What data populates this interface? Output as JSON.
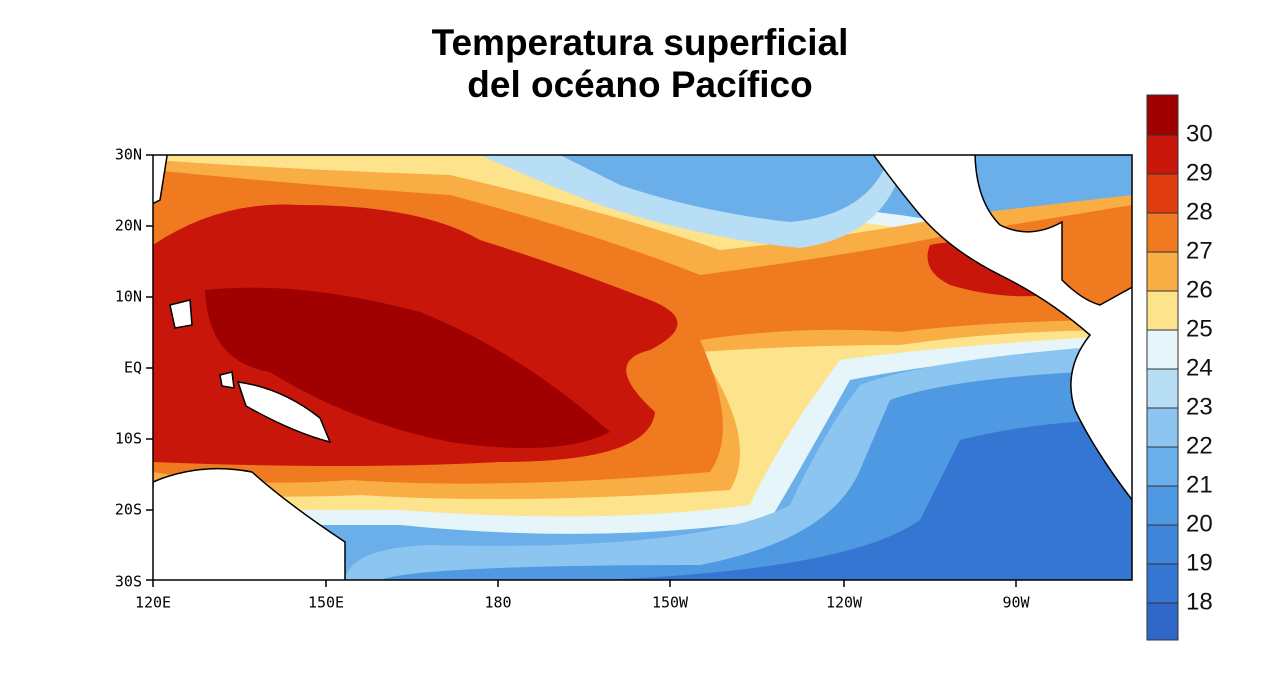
{
  "title": [
    "Temperatura superficial",
    "del océano Pacífico"
  ],
  "lat_labels": [
    "30N",
    "20N",
    "10N",
    "EQ",
    "10S",
    "20S",
    "30S"
  ],
  "lon_labels": [
    "120E",
    "150E",
    "180",
    "150W",
    "120W",
    "90W"
  ],
  "colorbar": {
    "labels": [
      30,
      29,
      28,
      27,
      26,
      25,
      24,
      23,
      22,
      21,
      20,
      19,
      18
    ],
    "colors": [
      "#a00000",
      "#c8160a",
      "#e03c12",
      "#f07a20",
      "#f8ae44",
      "#fde48c",
      "#e6f5fa",
      "#b8def5",
      "#8cc6f0",
      "#6aafea",
      "#4f98e2",
      "#3f86da",
      "#3576d2",
      "#2f68c8"
    ]
  }
}
